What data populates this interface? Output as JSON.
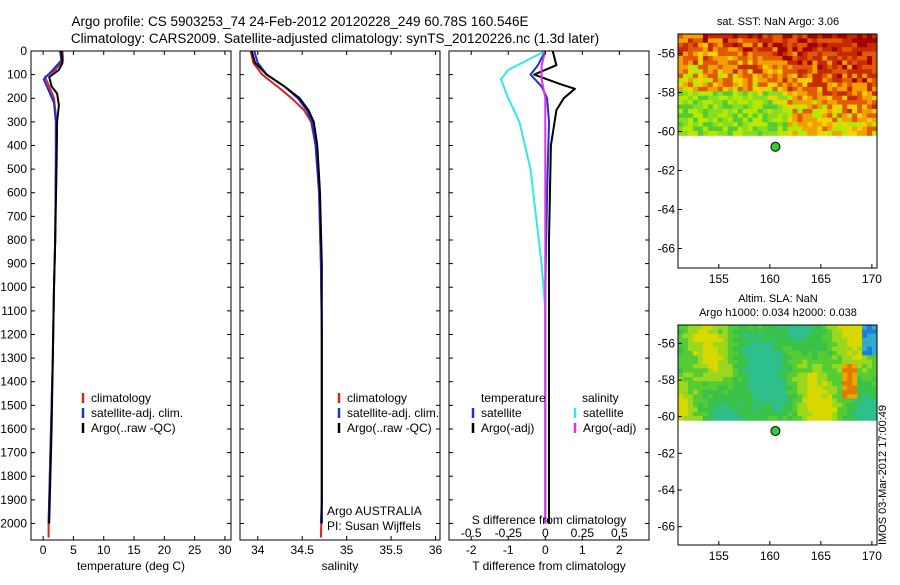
{
  "title": {
    "line1": "Argo profile: CS 5903253_74 24-Feb-2012 20120228_249 60.78S 160.546E",
    "line2": "Climatology: CARS2009. Satellite-adjusted climatology: synTS_20120226.nc (1.3d later)"
  },
  "colors": {
    "climatology": "#dd2222",
    "satellite": "#1f2fd8",
    "argo": "#000000",
    "sat_salinity": "#33e8e8",
    "argo_adj_salinity": "#e033e0",
    "float_marker": "#33cc33"
  },
  "footer_stamp": "IMOS 03-Mar-2012 17:00:49",
  "chart_data": [
    {
      "type": "line",
      "id": "temperature-profile",
      "xlabel": "temperature (deg C)",
      "xlim": [
        -2,
        31
      ],
      "xticks": [
        "0",
        "5",
        "10",
        "15",
        "20",
        "25",
        "30"
      ],
      "ylim": [
        0,
        2070
      ],
      "yticks": [
        "0",
        "100",
        "200",
        "300",
        "400",
        "500",
        "600",
        "700",
        "800",
        "900",
        "1000",
        "1100",
        "1200",
        "1300",
        "1400",
        "1500",
        "1600",
        "1700",
        "1800",
        "1900",
        "2000"
      ],
      "legend": [
        "climatology",
        "satellite-adj. clim.",
        "Argo(..raw -QC)"
      ],
      "series": [
        {
          "name": "climatology",
          "color": "#dd2222",
          "points": [
            [
              3.2,
              0
            ],
            [
              3.3,
              40
            ],
            [
              2.0,
              80
            ],
            [
              0.3,
              110
            ],
            [
              1.0,
              150
            ],
            [
              1.8,
              200
            ],
            [
              2.2,
              300
            ],
            [
              2.1,
              500
            ],
            [
              2.0,
              800
            ],
            [
              1.8,
              1000
            ],
            [
              1.6,
              1300
            ],
            [
              1.3,
              1600
            ],
            [
              1.1,
              1800
            ],
            [
              0.9,
              2000
            ],
            [
              0.9,
              2060
            ]
          ]
        },
        {
          "name": "satellite-adj. clim.",
          "color": "#1f2fd8",
          "points": [
            [
              2.8,
              0
            ],
            [
              3.0,
              40
            ],
            [
              1.6,
              80
            ],
            [
              0.1,
              120
            ],
            [
              0.8,
              160
            ],
            [
              1.8,
              220
            ],
            [
              2.1,
              300
            ],
            [
              2.1,
              500
            ],
            [
              2.0,
              800
            ],
            [
              1.8,
              1000
            ],
            [
              1.6,
              1300
            ],
            [
              1.3,
              1600
            ],
            [
              1.1,
              1800
            ],
            [
              0.9,
              2000
            ]
          ]
        },
        {
          "name": "Argo(..raw -QC)",
          "color": "#000000",
          "points": [
            [
              3.0,
              0
            ],
            [
              3.2,
              50
            ],
            [
              2.6,
              80
            ],
            [
              1.0,
              110
            ],
            [
              1.4,
              150
            ],
            [
              2.3,
              180
            ],
            [
              2.6,
              230
            ],
            [
              2.3,
              300
            ],
            [
              2.2,
              500
            ],
            [
              2.0,
              800
            ],
            [
              1.8,
              1000
            ],
            [
              1.6,
              1300
            ],
            [
              1.4,
              1600
            ],
            [
              1.2,
              1800
            ],
            [
              1.0,
              2000
            ]
          ]
        }
      ]
    },
    {
      "type": "line",
      "id": "salinity-profile",
      "xlabel": "salinity",
      "xlim": [
        33.8,
        36.05
      ],
      "xticks": [
        "34",
        "34.5",
        "35",
        "35.5",
        "36"
      ],
      "ylim": [
        0,
        2070
      ],
      "legend": [
        "climatology",
        "satellite-adj. clim.",
        "Argo(..raw -QC)"
      ],
      "annotation": [
        "Argo AUSTRALIA",
        "PI: Susan Wijffels"
      ],
      "series": [
        {
          "name": "climatology",
          "color": "#dd2222",
          "points": [
            [
              33.92,
              0
            ],
            [
              33.95,
              50
            ],
            [
              34.05,
              100
            ],
            [
              34.22,
              150
            ],
            [
              34.38,
              200
            ],
            [
              34.52,
              250
            ],
            [
              34.6,
              300
            ],
            [
              34.65,
              400
            ],
            [
              34.69,
              600
            ],
            [
              34.71,
              900
            ],
            [
              34.72,
              1200
            ],
            [
              34.72,
              1600
            ],
            [
              34.72,
              1900
            ],
            [
              34.71,
              2060
            ]
          ]
        },
        {
          "name": "satellite-adj. clim.",
          "color": "#1f2fd8",
          "points": [
            [
              33.96,
              0
            ],
            [
              34.0,
              50
            ],
            [
              34.1,
              100
            ],
            [
              34.3,
              150
            ],
            [
              34.45,
              200
            ],
            [
              34.55,
              250
            ],
            [
              34.61,
              300
            ],
            [
              34.65,
              400
            ],
            [
              34.69,
              600
            ],
            [
              34.71,
              900
            ],
            [
              34.72,
              1200
            ],
            [
              34.72,
              1600
            ],
            [
              34.72,
              1900
            ],
            [
              34.71,
              2000
            ]
          ]
        },
        {
          "name": "Argo(..raw -QC)",
          "color": "#000000",
          "points": [
            [
              33.93,
              0
            ],
            [
              33.97,
              50
            ],
            [
              34.1,
              100
            ],
            [
              34.3,
              150
            ],
            [
              34.47,
              200
            ],
            [
              34.57,
              250
            ],
            [
              34.63,
              300
            ],
            [
              34.67,
              400
            ],
            [
              34.7,
              600
            ],
            [
              34.72,
              900
            ],
            [
              34.72,
              1200
            ],
            [
              34.72,
              1600
            ],
            [
              34.72,
              1900
            ],
            [
              34.72,
              2000
            ]
          ]
        }
      ]
    },
    {
      "type": "line",
      "id": "difference-from-climatology",
      "xlabel": "T difference from climatology",
      "xlim": [
        -2.6,
        2.8
      ],
      "xticks": [
        "-2",
        "-1",
        "0",
        "1",
        "2"
      ],
      "top_axis_label": "S difference from climatology",
      "top_xticks": [
        "-0.5",
        "-0.25",
        "0",
        "0.25",
        "0.5"
      ],
      "ylim": [
        0,
        2070
      ],
      "legend_temperature": {
        "heading": "temperature",
        "items": [
          "satellite",
          "Argo(-adj)"
        ]
      },
      "legend_salinity": {
        "heading": "salinity",
        "items": [
          "satellite",
          "Argo(-adj)"
        ]
      },
      "series": [
        {
          "name": "T satellite",
          "color": "#1f2fd8",
          "points": [
            [
              0,
              0
            ],
            [
              -0.2,
              60
            ],
            [
              -0.4,
              100
            ],
            [
              -0.1,
              150
            ],
            [
              0.05,
              200
            ],
            [
              0.1,
              300
            ],
            [
              0.05,
              600
            ],
            [
              0.0,
              1000
            ],
            [
              0.0,
              1500
            ],
            [
              0.0,
              2000
            ]
          ]
        },
        {
          "name": "T Argo(-adj)",
          "color": "#000000",
          "points": [
            [
              0.2,
              0
            ],
            [
              0.3,
              60
            ],
            [
              -0.3,
              100
            ],
            [
              0.4,
              140
            ],
            [
              0.8,
              160
            ],
            [
              0.5,
              200
            ],
            [
              0.3,
              250
            ],
            [
              0.15,
              400
            ],
            [
              0.1,
              800
            ],
            [
              0.1,
              1200
            ],
            [
              0.1,
              1600
            ],
            [
              0.1,
              2000
            ]
          ]
        },
        {
          "name": "S satellite",
          "color": "#33e8e8",
          "points": [
            [
              0,
              0
            ],
            [
              -1.0,
              80
            ],
            [
              -1.2,
              120
            ],
            [
              -1.0,
              200
            ],
            [
              -0.7,
              300
            ],
            [
              -0.4,
              500
            ],
            [
              -0.25,
              700
            ],
            [
              -0.1,
              900
            ],
            [
              0,
              1100
            ],
            [
              0,
              2000
            ]
          ]
        },
        {
          "name": "S Argo(-adj)",
          "color": "#e033e0",
          "points": [
            [
              0,
              0
            ],
            [
              -0.1,
              60
            ],
            [
              -0.1,
              120
            ],
            [
              0.0,
              200
            ],
            [
              0.0,
              400
            ],
            [
              0.0,
              800
            ],
            [
              0.0,
              2000
            ]
          ]
        }
      ]
    },
    {
      "type": "heatmap",
      "id": "sst-map",
      "title": "sat. SST: NaN Argo: 3.06",
      "xlim": [
        151,
        170.5
      ],
      "ylim": [
        -67,
        -55
      ],
      "xticks": [
        "155",
        "160",
        "165",
        "170"
      ],
      "yticks": [
        "-56",
        "-58",
        "-60",
        "-62",
        "-64",
        "-66"
      ],
      "data_ylim": [
        -60.2,
        -55
      ],
      "marker": {
        "lon": 160.546,
        "lat": -60.78
      }
    },
    {
      "type": "heatmap",
      "id": "sla-map",
      "title": "Altim. SLA: NaN",
      "subtitle": "Argo h1000: 0.034 h2000: 0.038",
      "xlim": [
        151,
        170.5
      ],
      "ylim": [
        -67,
        -55
      ],
      "xticks": [
        "155",
        "160",
        "165",
        "170"
      ],
      "yticks": [
        "-56",
        "-58",
        "-60",
        "-62",
        "-64",
        "-66"
      ],
      "data_ylim": [
        -60.2,
        -55
      ],
      "marker": {
        "lon": 160.546,
        "lat": -60.78
      }
    }
  ]
}
